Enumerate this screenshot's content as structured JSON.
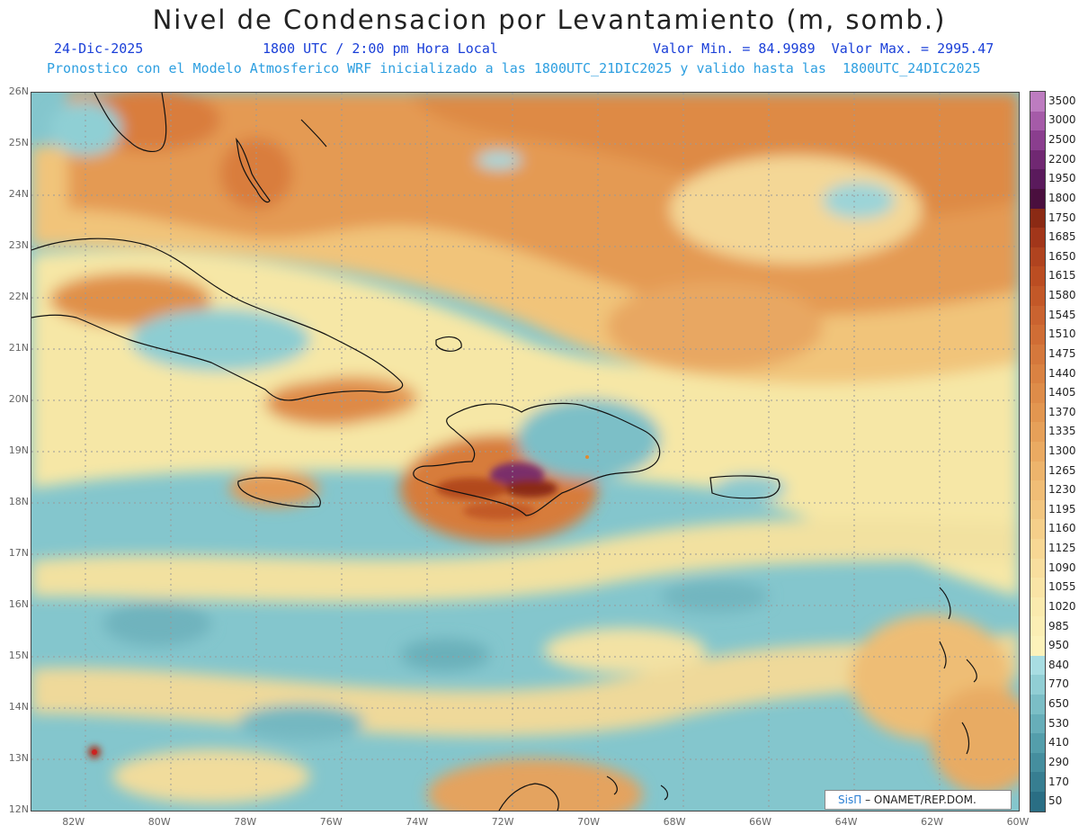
{
  "header": {
    "title": "Nivel de Condensacion por Levantamiento (m, somb.)",
    "date": "24-Dic-2025",
    "time": "1800 UTC / 2:00 pm Hora Local",
    "minmax": "Valor Min. = 84.9989  Valor Max. = 2995.47",
    "subtitle": "Pronostico con el Modelo Atmosferico WRF inicializado a las 1800UTC_21DIC2025 y valido hasta las  1800UTC_24DIC2025"
  },
  "credit": {
    "brand": "SisΠ",
    "text": "– ONAMET/REP.DOM."
  },
  "colors": {
    "header_text": "#1a3fd8",
    "subtitle_text": "#2e9fe0",
    "ocean_base": "#7fc4cc",
    "brand": "#2a7fd4"
  },
  "chart_data": {
    "type": "heatmap",
    "title": "Nivel de Condensacion por Levantamiento (m, somb.)",
    "x_ticks": [
      "82W",
      "80W",
      "78W",
      "76W",
      "74W",
      "72W",
      "70W",
      "68W",
      "66W",
      "64W",
      "62W",
      "60W"
    ],
    "y_ticks": [
      "26N",
      "25N",
      "24N",
      "23N",
      "22N",
      "21N",
      "20N",
      "19N",
      "18N",
      "17N",
      "16N",
      "15N",
      "14N",
      "13N",
      "12N"
    ],
    "lon_range": [
      -83,
      -60
    ],
    "lat_range": [
      12,
      26
    ],
    "value_min": 84.9989,
    "value_max": 2995.47,
    "grid": true,
    "colorbar": {
      "levels": [
        "3500",
        "3000",
        "2500",
        "2200",
        "1950",
        "1800",
        "1750",
        "1685",
        "1650",
        "1615",
        "1580",
        "1545",
        "1510",
        "1475",
        "1440",
        "1405",
        "1370",
        "1335",
        "1300",
        "1265",
        "1230",
        "1195",
        "1160",
        "1125",
        "1090",
        "1055",
        "1020",
        "985",
        "950",
        "840",
        "770",
        "650",
        "530",
        "410",
        "290",
        "170",
        "50"
      ],
      "colors": [
        "#bd7cc0",
        "#a55ba8",
        "#8a3e8e",
        "#702872",
        "#5a1a5c",
        "#4a0f3e",
        "#8b2a14",
        "#a2361a",
        "#b0431f",
        "#bb4d22",
        "#c35828",
        "#ca6330",
        "#d06d35",
        "#d5783c",
        "#da8242",
        "#de8c49",
        "#e29650",
        "#e6a059",
        "#eaaa62",
        "#edb46c",
        "#f0bd76",
        "#f2c680",
        "#f5cf8a",
        "#f7d794",
        "#f8de9e",
        "#f9e4a6",
        "#faeaae",
        "#fbeeb4",
        "#fcf2ba",
        "#a8dde2",
        "#91ced4",
        "#7bbec6",
        "#67aeb9",
        "#549eab",
        "#458e9e",
        "#377e91",
        "#2a6e84"
      ]
    }
  }
}
